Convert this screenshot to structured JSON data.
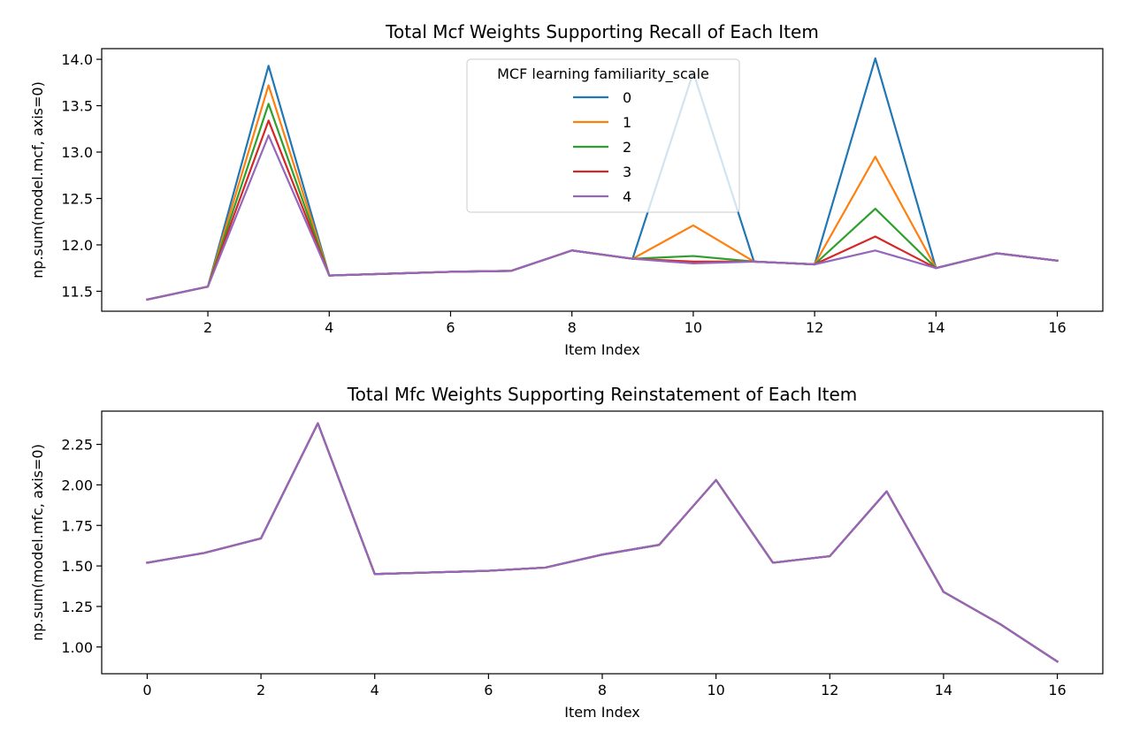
{
  "chart_data": [
    {
      "type": "line",
      "title": "Total Mcf Weights Supporting Recall of Each Item",
      "xlabel": "Item Index",
      "ylabel": "np.sum(model.mcf, axis=0)",
      "xlim": [
        0.25,
        16.75
      ],
      "ylim": [
        11.285,
        14.115
      ],
      "xticks": [
        2,
        4,
        6,
        8,
        10,
        12,
        14,
        16
      ],
      "yticks": [
        11.5,
        12.0,
        12.5,
        13.0,
        13.5,
        14.0
      ],
      "grid": false,
      "legend": {
        "title": "MCF learning familiarity_scale",
        "placement": "upper center"
      },
      "x": [
        1,
        2,
        3,
        4,
        5,
        6,
        7,
        8,
        9,
        10,
        11,
        12,
        13,
        14,
        15,
        16
      ],
      "series": [
        {
          "name": "0",
          "color": "#1f77b4",
          "values": [
            11.41,
            11.55,
            13.93,
            11.67,
            11.69,
            11.71,
            11.72,
            11.94,
            11.85,
            13.86,
            11.82,
            11.79,
            14.01,
            11.75,
            11.91,
            11.83
          ]
        },
        {
          "name": "1",
          "color": "#ff7f0e",
          "values": [
            11.41,
            11.55,
            13.72,
            11.67,
            11.69,
            11.71,
            11.72,
            11.94,
            11.85,
            12.21,
            11.82,
            11.79,
            12.95,
            11.75,
            11.91,
            11.83
          ]
        },
        {
          "name": "2",
          "color": "#2ca02c",
          "values": [
            11.41,
            11.55,
            13.52,
            11.67,
            11.69,
            11.71,
            11.72,
            11.94,
            11.85,
            11.88,
            11.82,
            11.79,
            12.39,
            11.75,
            11.91,
            11.83
          ]
        },
        {
          "name": "3",
          "color": "#d62728",
          "values": [
            11.41,
            11.55,
            13.34,
            11.67,
            11.69,
            11.71,
            11.72,
            11.94,
            11.85,
            11.82,
            11.82,
            11.79,
            12.09,
            11.75,
            11.91,
            11.83
          ]
        },
        {
          "name": "4",
          "color": "#9467bd",
          "values": [
            11.41,
            11.55,
            13.18,
            11.67,
            11.69,
            11.71,
            11.72,
            11.94,
            11.85,
            11.8,
            11.82,
            11.79,
            11.94,
            11.75,
            11.91,
            11.83
          ]
        }
      ]
    },
    {
      "type": "line",
      "title": "Total Mfc Weights Supporting Reinstatement of Each Item",
      "xlabel": "Item Index",
      "ylabel": "np.sum(model.mfc, axis=0)",
      "xlim": [
        -0.8,
        16.8
      ],
      "ylim": [
        0.835,
        2.455
      ],
      "xticks": [
        0,
        2,
        4,
        6,
        8,
        10,
        12,
        14,
        16
      ],
      "yticks": [
        1.0,
        1.25,
        1.5,
        1.75,
        2.0,
        2.25
      ],
      "grid": false,
      "x": [
        0,
        1,
        2,
        3,
        4,
        5,
        6,
        7,
        8,
        9,
        10,
        11,
        12,
        13,
        14,
        15,
        16
      ],
      "series": [
        {
          "name": "0",
          "color": "#1f77b4",
          "values": [
            1.52,
            1.58,
            1.67,
            2.38,
            1.45,
            1.46,
            1.47,
            1.49,
            1.57,
            1.63,
            2.03,
            1.52,
            1.56,
            1.96,
            1.34,
            1.14,
            0.91
          ]
        },
        {
          "name": "1",
          "color": "#ff7f0e",
          "values": [
            1.52,
            1.58,
            1.67,
            2.38,
            1.45,
            1.46,
            1.47,
            1.49,
            1.57,
            1.63,
            2.03,
            1.52,
            1.56,
            1.96,
            1.34,
            1.14,
            0.91
          ]
        },
        {
          "name": "2",
          "color": "#2ca02c",
          "values": [
            1.52,
            1.58,
            1.67,
            2.38,
            1.45,
            1.46,
            1.47,
            1.49,
            1.57,
            1.63,
            2.03,
            1.52,
            1.56,
            1.96,
            1.34,
            1.14,
            0.91
          ]
        },
        {
          "name": "3",
          "color": "#d62728",
          "values": [
            1.52,
            1.58,
            1.67,
            2.38,
            1.45,
            1.46,
            1.47,
            1.49,
            1.57,
            1.63,
            2.03,
            1.52,
            1.56,
            1.96,
            1.34,
            1.14,
            0.91
          ]
        },
        {
          "name": "4",
          "color": "#9467bd",
          "values": [
            1.52,
            1.58,
            1.67,
            2.38,
            1.45,
            1.46,
            1.47,
            1.49,
            1.57,
            1.63,
            2.03,
            1.52,
            1.56,
            1.96,
            1.34,
            1.14,
            0.91
          ]
        }
      ]
    }
  ]
}
